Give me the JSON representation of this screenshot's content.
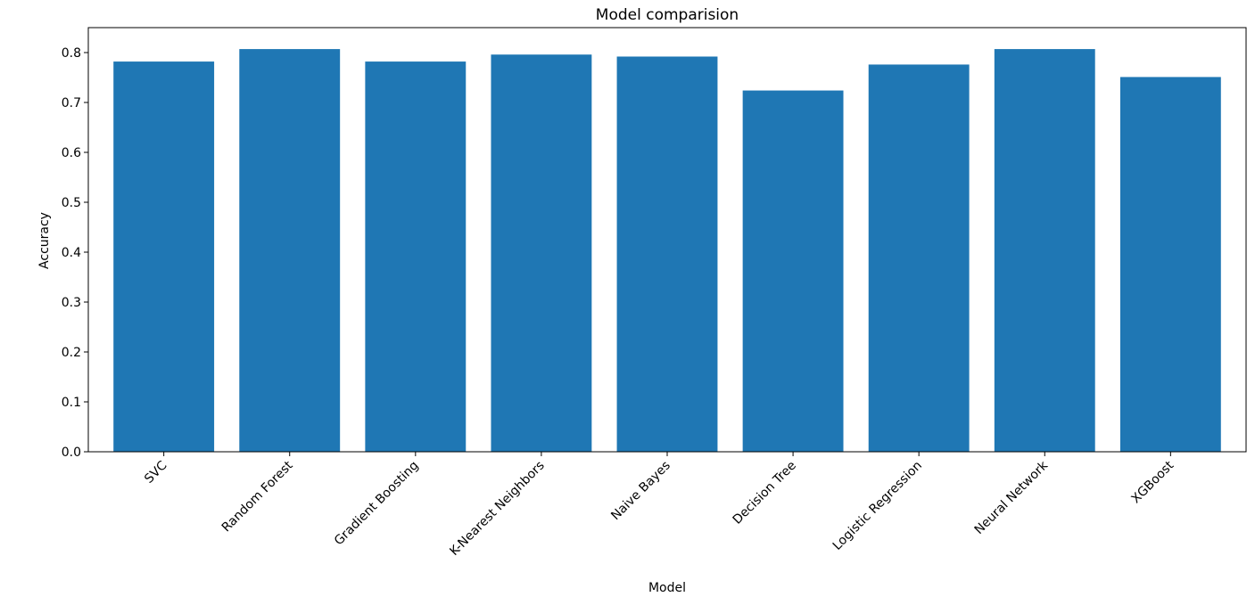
{
  "chart_data": {
    "type": "bar",
    "title": "Model comparision",
    "xlabel": "Model",
    "ylabel": "Accuracy",
    "categories": [
      "SVC",
      "Random Forest",
      "Gradient Boosting",
      "K-Nearest Neighbors",
      "Naive Bayes",
      "Decision Tree",
      "Logistic Regression",
      "Neural Network",
      "XGBoost"
    ],
    "values": [
      0.782,
      0.807,
      0.782,
      0.796,
      0.792,
      0.724,
      0.776,
      0.807,
      0.751
    ],
    "ylim": [
      0,
      0.85
    ],
    "yticks": [
      0.0,
      0.1,
      0.2,
      0.3,
      0.4,
      0.5,
      0.6,
      0.7,
      0.8
    ],
    "ytick_labels": [
      "0.0",
      "0.1",
      "0.2",
      "0.3",
      "0.4",
      "0.5",
      "0.6",
      "0.7",
      "0.8"
    ],
    "bar_color": "#1f77b4",
    "grid": false,
    "legend": false
  }
}
